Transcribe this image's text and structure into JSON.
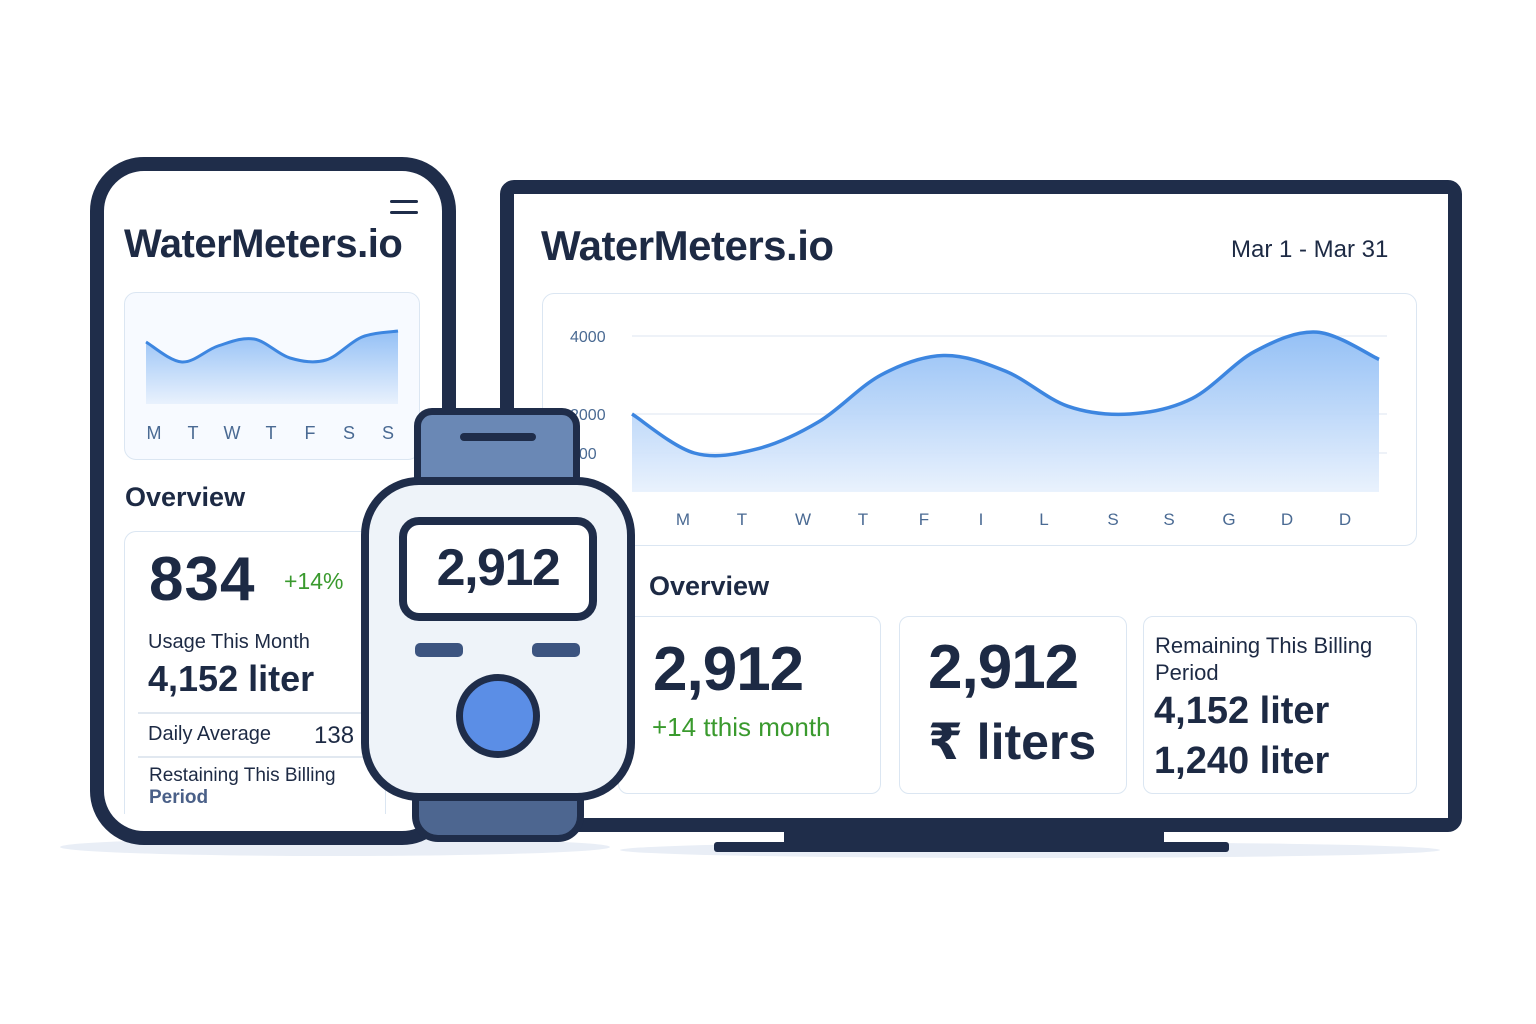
{
  "phone": {
    "title": "WaterMeters.io",
    "chart_days": [
      "M",
      "T",
      "W",
      "T",
      "F",
      "S",
      "S"
    ],
    "overview_label": "Overview",
    "main_value": "834",
    "change": "+14%",
    "usage_label": "Usage This Month",
    "usage_value": "4,152 liter",
    "daily_avg_label": "Daily Average",
    "daily_avg_value": "138",
    "remaining_label_line1": "Restaining This Billing",
    "remaining_label_line2": "Period"
  },
  "watch": {
    "value": "2,912"
  },
  "monitor": {
    "title": "WaterMeters.io",
    "date_range": "Mar 1 - Mar 31",
    "overview_label": "Overview",
    "card1": {
      "value": "2,912",
      "change": "+14 tthis month"
    },
    "card2": {
      "value": "2,912",
      "unit": "₹ liters"
    },
    "card3": {
      "label_line1": "Remaining This Billing",
      "label_line2": "Period",
      "value1": "4,152 liter",
      "value2": "1,240 liter"
    }
  },
  "colors": {
    "dark": "#1f2d4a",
    "line": "#3d86e0",
    "green": "#3a9a2e",
    "watch_button": "#5b8ee6"
  },
  "chart_data": [
    {
      "type": "area",
      "y_tick_labels": [
        "4000",
        "2000",
        "000"
      ],
      "categories": [
        "M",
        "T",
        "W",
        "T",
        "F",
        "I",
        "L",
        "S",
        "S",
        "G",
        "D",
        "D"
      ],
      "x": [
        0,
        1,
        2,
        3,
        4,
        5,
        6,
        7,
        8,
        9,
        10,
        11,
        12
      ],
      "values": [
        2000,
        1000,
        1100,
        1800,
        3000,
        3500,
        3100,
        2200,
        2000,
        2400,
        3600,
        4100,
        3400
      ],
      "ylim": [
        0,
        4000
      ],
      "grid": true
    },
    {
      "type": "area",
      "categories": [
        "M",
        "T",
        "W",
        "T",
        "F",
        "S",
        "S"
      ],
      "x": [
        0,
        1,
        2,
        3,
        4,
        5,
        6,
        7
      ],
      "values": [
        62,
        42,
        58,
        65,
        46,
        44,
        67,
        73
      ],
      "grid": false
    }
  ]
}
